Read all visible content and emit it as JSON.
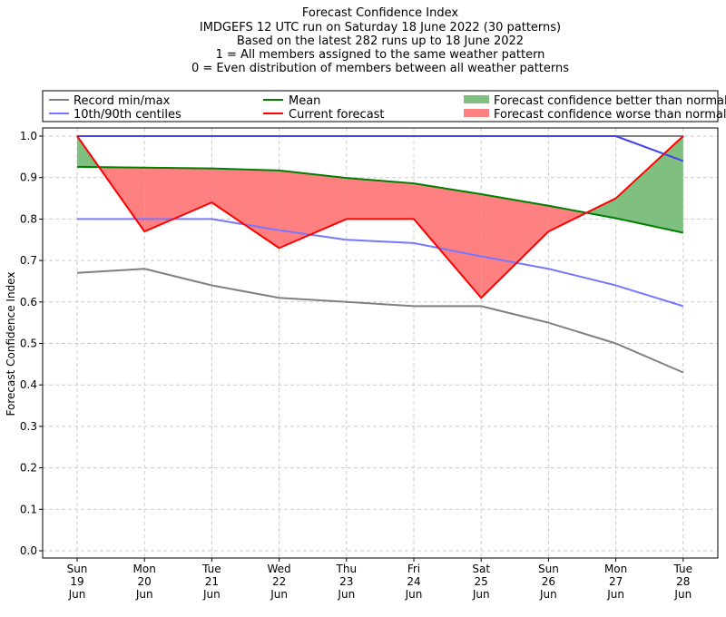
{
  "chart_data": {
    "type": "line",
    "title_lines": [
      "Forecast Confidence Index",
      "IMDGEFS 12 UTC run on Saturday 18 June 2022 (30 patterns)",
      "Based on the latest 282 runs up to 18 June 2022",
      "1 = All members assigned to the same weather pattern",
      "0 = Even distribution of members between all weather patterns"
    ],
    "ylabel": "Forecast Confidence Index",
    "ylim": [
      0,
      1.0
    ],
    "yticks": [
      "0.0",
      "0.1",
      "0.2",
      "0.3",
      "0.4",
      "0.5",
      "0.6",
      "0.7",
      "0.8",
      "0.9",
      "1.0"
    ],
    "categories": [
      {
        "day": "Sun",
        "date": "19",
        "month": "Jun"
      },
      {
        "day": "Mon",
        "date": "20",
        "month": "Jun"
      },
      {
        "day": "Tue",
        "date": "21",
        "month": "Jun"
      },
      {
        "day": "Wed",
        "date": "22",
        "month": "Jun"
      },
      {
        "day": "Thu",
        "date": "23",
        "month": "Jun"
      },
      {
        "day": "Fri",
        "date": "24",
        "month": "Jun"
      },
      {
        "day": "Sat",
        "date": "25",
        "month": "Jun"
      },
      {
        "day": "Sun",
        "date": "26",
        "month": "Jun"
      },
      {
        "day": "Mon",
        "date": "27",
        "month": "Jun"
      },
      {
        "day": "Tue",
        "date": "28",
        "month": "Jun"
      }
    ],
    "grid": true,
    "legend_position": "top",
    "series": [
      {
        "name": "Record min/max",
        "color": "#808080",
        "role": "record_min",
        "values": [
          0.67,
          0.68,
          0.64,
          0.61,
          0.6,
          0.59,
          0.59,
          0.55,
          0.5,
          0.43
        ]
      },
      {
        "name": "Record min/max",
        "color": "#808080",
        "role": "record_max",
        "values": [
          1.0,
          1.0,
          1.0,
          1.0,
          1.0,
          1.0,
          1.0,
          1.0,
          1.0,
          1.0
        ]
      },
      {
        "name": "10th/90th centiles",
        "color": "#7777ff",
        "role": "p10",
        "values": [
          0.8,
          0.8,
          0.8,
          0.773,
          0.75,
          0.742,
          0.71,
          0.68,
          0.64,
          0.59
        ]
      },
      {
        "name": "10th/90th centiles",
        "color": "#4444ee",
        "role": "p90",
        "values": [
          1.0,
          1.0,
          1.0,
          1.0,
          1.0,
          1.0,
          1.0,
          1.0,
          1.0,
          0.94
        ]
      },
      {
        "name": "Mean",
        "color": "#008000",
        "role": "mean",
        "values": [
          0.926,
          0.924,
          0.922,
          0.917,
          0.899,
          0.886,
          0.86,
          0.832,
          0.802,
          0.767
        ]
      },
      {
        "name": "Current forecast",
        "color": "#ff0000",
        "role": "current",
        "values": [
          1.0,
          0.77,
          0.84,
          0.73,
          0.8,
          0.8,
          0.61,
          0.77,
          0.85,
          1.0
        ]
      }
    ],
    "legend": {
      "record": "Record min/max",
      "centiles": "10th/90th centiles",
      "mean": "Mean",
      "current": "Current forecast",
      "better": "Forecast confidence better than normal",
      "worse": "Forecast confidence worse than normal"
    },
    "colors": {
      "better_fill": "#7fbf7f",
      "worse_fill": "#ff8080",
      "grid": "#cccccc"
    }
  }
}
